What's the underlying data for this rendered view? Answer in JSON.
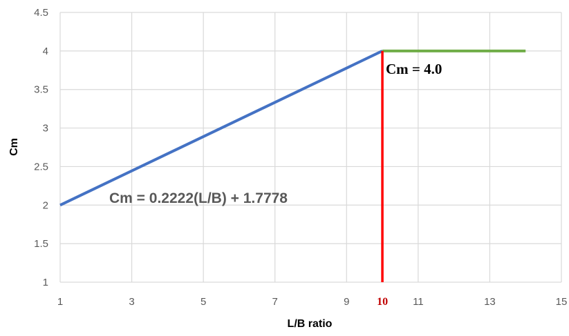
{
  "chart_data": {
    "type": "line",
    "xlabel": "L/B ratio",
    "ylabel": "Cm",
    "xlim": [
      1,
      15
    ],
    "ylim": [
      1,
      4.5
    ],
    "x_ticks": [
      "1",
      "3",
      "5",
      "7",
      "9",
      "11",
      "13",
      "15"
    ],
    "y_ticks": [
      "1",
      "1.5",
      "2",
      "2.5",
      "3",
      "3.5",
      "4",
      "4.5"
    ],
    "grid": true,
    "series": [
      {
        "color": "#4472C4",
        "points": [
          [
            1,
            2.0
          ],
          [
            10,
            4.0
          ]
        ]
      },
      {
        "color": "#70AD47",
        "points": [
          [
            10,
            4.0
          ],
          [
            14,
            4.0
          ]
        ]
      }
    ],
    "vertical_line": {
      "x": 10,
      "y_range": [
        1,
        4.0
      ],
      "color": "#FF0000"
    },
    "x_highlight_tick": {
      "value": 10,
      "label": "10",
      "color": "#C00000"
    },
    "annotations": {
      "linear_equation": "Cm = 0.2222(L/B) + 1.7778",
      "constant_equation": "Cm = 4.0"
    }
  }
}
